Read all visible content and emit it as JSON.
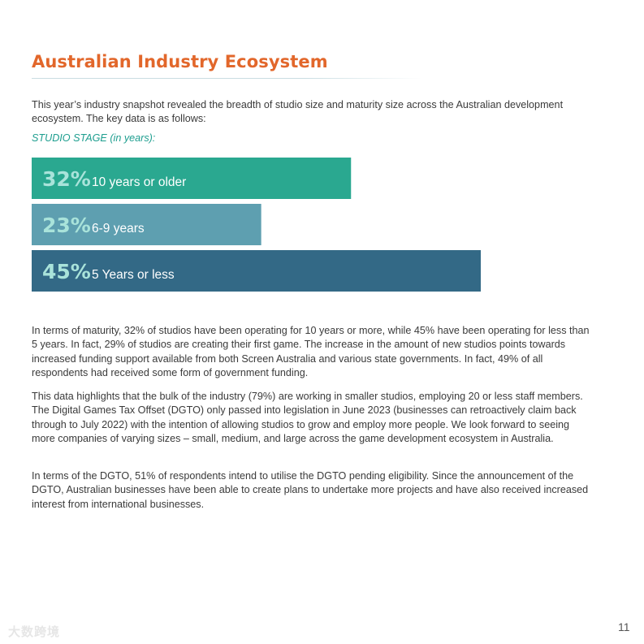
{
  "title": "Australian Industry Ecosystem",
  "intro": "This year’s industry snapshot revealed the breadth of studio size and maturity size across the Australian development ecosystem.  The key data is as follows:",
  "chart_heading": "STUDIO STAGE (in years):",
  "chart_data": {
    "type": "bar",
    "orientation": "horizontal",
    "categories": [
      "10 years or older",
      "6-9 years",
      "5 Years or less"
    ],
    "values": [
      32,
      23,
      45
    ],
    "value_labels": [
      "32%",
      "23%",
      "45%"
    ],
    "unit": "%",
    "xlim": [
      0,
      50
    ],
    "colors": [
      "#2aa890",
      "#5e9fb0",
      "#336986"
    ],
    "grid": false,
    "axes_visible": false
  },
  "paragraphs": [
    "In terms of maturity, 32% of studios have been operating for 10 years or more, while 45% have been operating for less than 5 years.  In fact, 29% of studios are creating their first game. The increase in the amount of new studios points towards increased funding support available from both Screen Australia and various state governments. In fact, 49% of all respondents had received some form of government funding.",
    "This data highlights that the bulk of the industry (79%) are working in smaller studios, employing 20 or less staff members.  The Digital Games Tax Offset (DGTO) only passed into legislation in June 2023 (businesses can retroactively claim back through to July 2022) with the intention of allowing studios to grow and employ more people. We look forward to seeing more companies of varying sizes – small, medium, and large across the game development ecosystem in Australia.",
    "In terms of the DGTO, 51% of respondents intend to utilise the DGTO pending eligibility.  Since the announcement of the DGTO, Australian businesses have been able to create plans to undertake more projects and have also received increased interest from international businesses."
  ],
  "page_number": "11",
  "watermark": "大数跨境"
}
